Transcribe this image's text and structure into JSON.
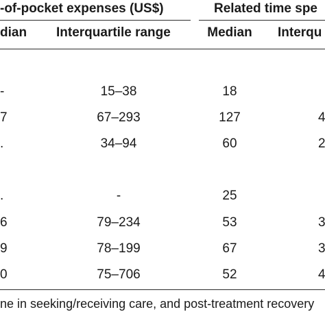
{
  "table": {
    "group_headers": {
      "out_of_pocket": "-of-pocket expenses (US$)",
      "time_spent": "Related time spe"
    },
    "sub_headers": {
      "median_left": "dian",
      "iqr_left": "Interquartile range",
      "median_right": "Median",
      "iqr_right": "Interqu"
    },
    "rows": [
      {
        "median_left": "",
        "iqr_left": "",
        "median_right": "",
        "iqr_right": ""
      },
      {
        "median_left": "-",
        "iqr_left": "15–38",
        "median_right": "18",
        "iqr_right": ""
      },
      {
        "median_left": "7",
        "iqr_left": "67–293",
        "median_right": "127",
        "iqr_right": "4"
      },
      {
        "median_left": ".",
        "iqr_left": "34–94",
        "median_right": "60",
        "iqr_right": "2"
      },
      {
        "median_left": "",
        "iqr_left": "",
        "median_right": "",
        "iqr_right": ""
      },
      {
        "median_left": ".",
        "iqr_left": "-",
        "median_right": "25",
        "iqr_right": ""
      },
      {
        "median_left": "6",
        "iqr_left": "79–234",
        "median_right": "53",
        "iqr_right": "3"
      },
      {
        "median_left": "9",
        "iqr_left": "78–199",
        "median_right": "67",
        "iqr_right": "3"
      },
      {
        "median_left": "0",
        "iqr_left": "75–706",
        "median_right": "52",
        "iqr_right": "4"
      }
    ],
    "footnote": "ne in seeking/receiving care, and post-treatment recovery"
  }
}
